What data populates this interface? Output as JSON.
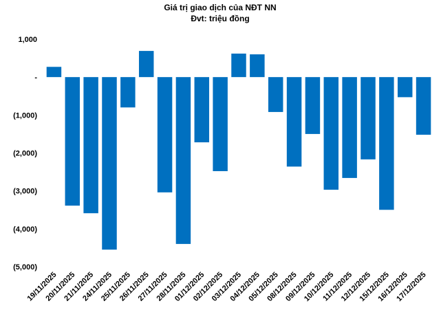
{
  "chart_data": {
    "type": "bar",
    "title": "Giá trị giao dịch của NĐT NN",
    "subtitle": "Đvt: triệu đồng",
    "categories": [
      "19/11/2025",
      "20/11/2025",
      "21/11/2025",
      "24/11/2025",
      "25/11/2025",
      "26/11/2025",
      "27/11/2025",
      "28/11/2025",
      "01/12/2025",
      "02/12/2025",
      "03/12/2025",
      "04/12/2025",
      "05/12/2025",
      "08/12/2025",
      "09/12/2025",
      "10/12/2025",
      "11/12/2025",
      "12/12/2025",
      "15/12/2025",
      "16/12/2025",
      "17/12/2025"
    ],
    "values": [
      270,
      -3390,
      -3590,
      -4550,
      -800,
      690,
      -3040,
      -4400,
      -1720,
      -2480,
      620,
      600,
      -920,
      -2360,
      -1500,
      -2970,
      -2660,
      -2170,
      -3500,
      -530,
      -1520
    ],
    "color": "#0070c0",
    "ylim": [
      -5000,
      1000
    ],
    "yticks": [
      {
        "value": 1000,
        "label": "1,000"
      },
      {
        "value": 0,
        "label": "-"
      },
      {
        "value": -1000,
        "label": "(1,000)"
      },
      {
        "value": -2000,
        "label": "(2,000)"
      },
      {
        "value": -3000,
        "label": "(3,000)"
      },
      {
        "value": -4000,
        "label": "(4,000)"
      },
      {
        "value": -5000,
        "label": "(5,000)"
      }
    ]
  }
}
